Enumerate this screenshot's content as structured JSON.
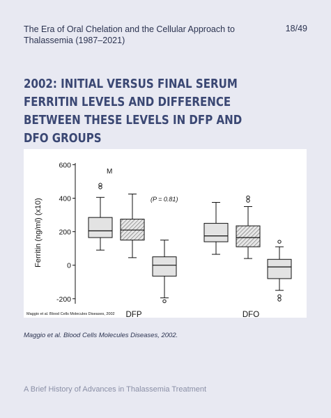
{
  "header": {
    "title": "The Era of Oral Chelation and the Cellular Approach to Thalassemia  (1987–2021)",
    "page_number": "18/49"
  },
  "slide": {
    "title": "2002: Initial  versus final  serum ferritin levels and difference between these levels in DFP and DFO groups"
  },
  "caption": "Maggio et al. Blood Cells Molecules Diseases, 2002.",
  "footer": "A Brief History of Advances in Thalassemia Treatment",
  "chart_data": {
    "type": "boxplot",
    "ylabel": "Ferritin (ng/ml)  (x10)",
    "ylim": [
      -230,
      610
    ],
    "yticks": [
      -200,
      0,
      200,
      400,
      600
    ],
    "panel_label": "M",
    "annotation": "(P = 0.81)",
    "source_note": "Maggio et al. Blood Cells Molecules Diseases, 2002",
    "groups": [
      {
        "name": "DFP",
        "boxes": [
          {
            "kind": "initial",
            "hatched": false,
            "whisker_low": 90,
            "q1": 165,
            "median": 205,
            "q3": 285,
            "whisker_high": 405,
            "outliers": [
              465,
              480
            ]
          },
          {
            "kind": "final",
            "hatched": true,
            "whisker_low": 45,
            "q1": 150,
            "median": 210,
            "q3": 275,
            "whisker_high": 425,
            "outliers": []
          },
          {
            "kind": "difference",
            "hatched": false,
            "whisker_low": -195,
            "q1": -65,
            "median": 0,
            "q3": 50,
            "whisker_high": 150,
            "outliers": [
              -215
            ]
          }
        ]
      },
      {
        "name": "DFO",
        "boxes": [
          {
            "kind": "initial",
            "hatched": false,
            "whisker_low": 65,
            "q1": 140,
            "median": 175,
            "q3": 250,
            "whisker_high": 375,
            "outliers": []
          },
          {
            "kind": "final",
            "hatched": true,
            "whisker_low": 40,
            "q1": 110,
            "median": 165,
            "q3": 235,
            "whisker_high": 350,
            "outliers": [
              385,
              405
            ]
          },
          {
            "kind": "difference",
            "hatched": false,
            "whisker_low": -150,
            "q1": -80,
            "median": -10,
            "q3": 35,
            "whisker_high": 110,
            "outliers": [
              140,
              -185,
              -205
            ]
          }
        ]
      }
    ]
  }
}
